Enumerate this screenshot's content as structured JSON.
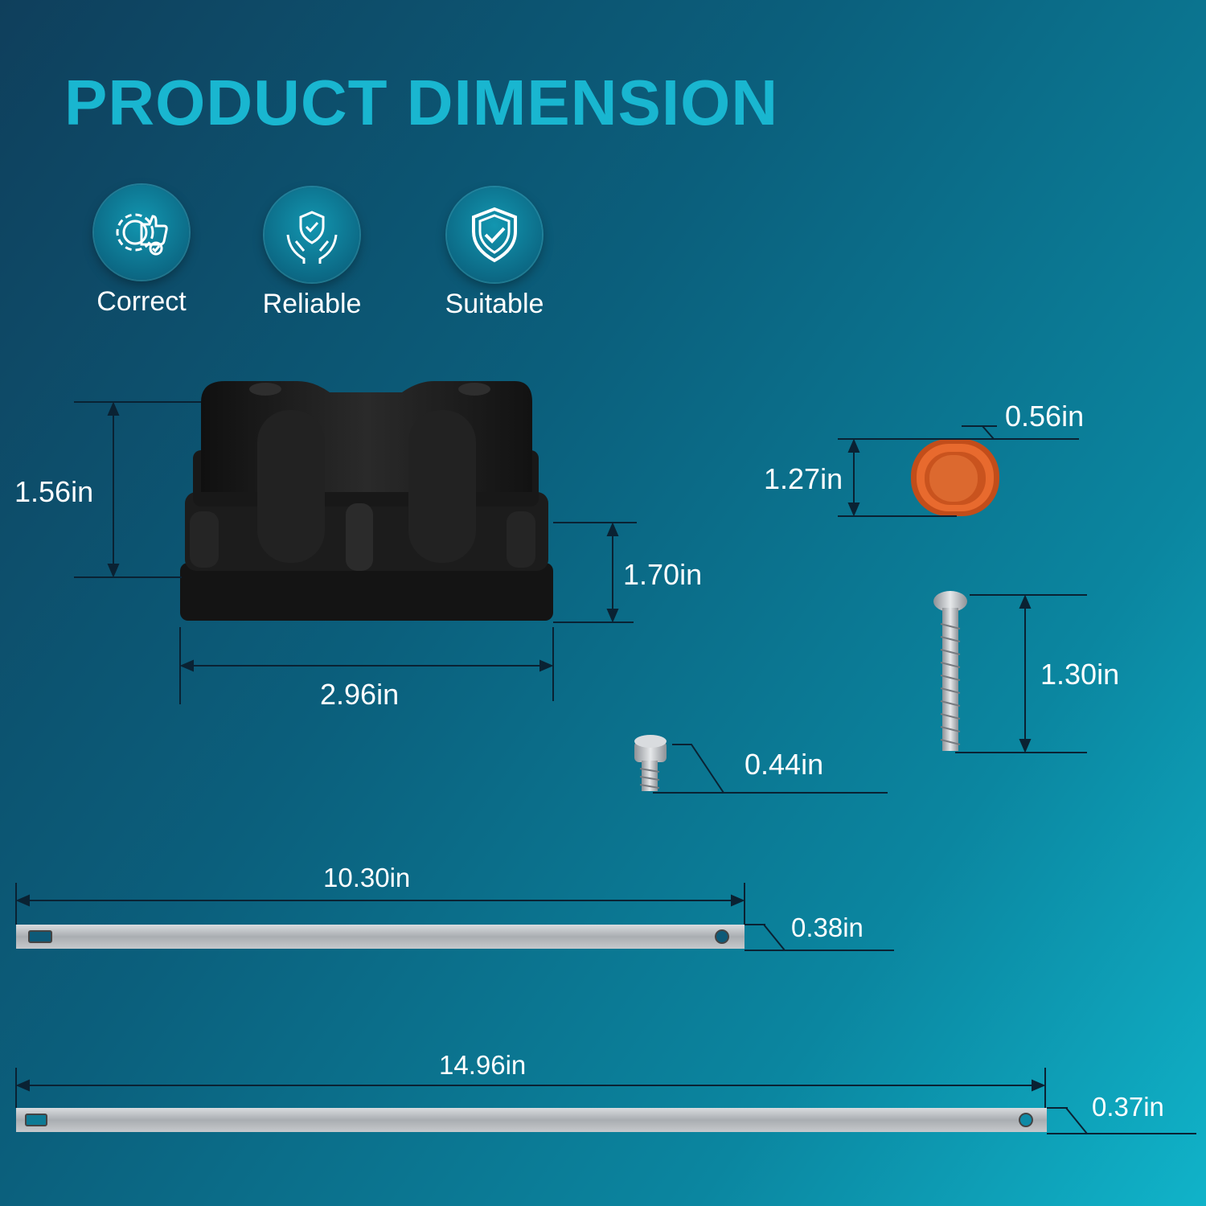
{
  "title": "PRODUCT DIMENSION",
  "badges": [
    {
      "label": "Correct",
      "icon": "gear-thumbs-up-icon"
    },
    {
      "label": "Reliable",
      "icon": "hands-shield-icon"
    },
    {
      "label": "Suitable",
      "icon": "shield-check-icon"
    }
  ],
  "dimensions": {
    "box_height_left": "1.56in",
    "box_base_height": "1.70in",
    "box_width": "2.96in",
    "ring_width": "0.56in",
    "ring_height": "1.27in",
    "long_screw_length": "1.30in",
    "short_screw_length": "0.44in",
    "bar1_length": "10.30in",
    "bar1_width": "0.38in",
    "bar2_length": "14.96in",
    "bar2_width": "0.37in"
  },
  "colors": {
    "title": "#19b6d0",
    "ring": "#e0642a",
    "box": "#1a1a1a",
    "metal": "#b9bcbf"
  }
}
